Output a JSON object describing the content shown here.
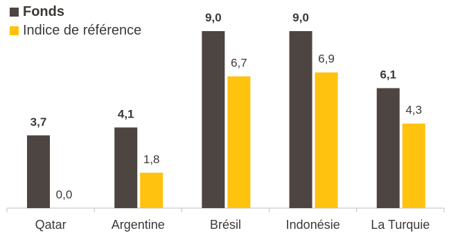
{
  "chart_data": {
    "type": "bar",
    "categories": [
      "Qatar",
      "Argentine",
      "Brésil",
      "Indonésie",
      "La Turquie"
    ],
    "series": [
      {
        "name": "Fonds",
        "values": [
          3.7,
          4.1,
          9.0,
          9.0,
          6.1
        ],
        "labels": [
          "3,7",
          "4,1",
          "9,0",
          "9,0",
          "6,1"
        ],
        "color": "#4d4541"
      },
      {
        "name": "Indice de référence",
        "values": [
          0.0,
          1.8,
          6.7,
          6.9,
          4.3
        ],
        "labels": [
          "0,0",
          "1,8",
          "6,7",
          "6,9",
          "4,3"
        ],
        "color": "#ffc20e"
      }
    ],
    "ylim": [
      0,
      9.0
    ],
    "grid": false,
    "legend_position": "top-left"
  }
}
